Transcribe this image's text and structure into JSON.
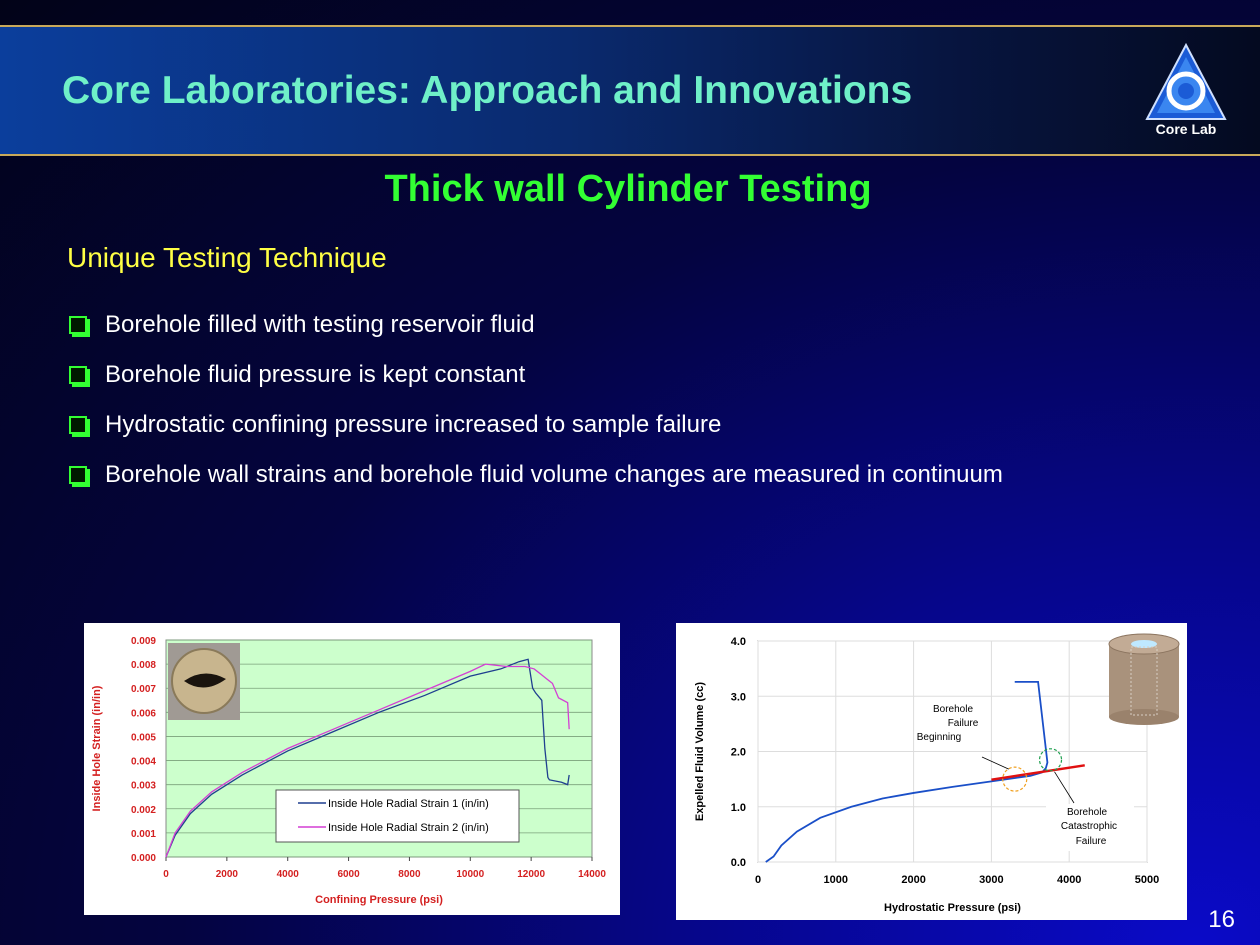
{
  "header": {
    "title": "Core Laboratories: Approach and Innovations",
    "logo_text": "Core Lab"
  },
  "subtitle": "Thick wall Cylinder Testing",
  "section_heading": "Unique Testing Technique",
  "bullets": [
    "Borehole filled with testing reservoir fluid",
    "Borehole fluid pressure is kept constant",
    "Hydrostatic confining pressure increased to sample failure",
    "Borehole  wall strains and borehole fluid volume changes are measured in continuum"
  ],
  "page_number": "16",
  "colors": {
    "title": "#6ff0c8",
    "subtitle": "#33ff33",
    "heading": "#ffff44",
    "chart1_plot_bg": "#ccffcc",
    "series1": "#1f3f8f",
    "series2": "#d43fd4",
    "chart2_line": "#1a4fc8",
    "chart2_fit": "#e01010"
  },
  "chart_data": [
    {
      "type": "line",
      "xlabel": "Confining Pressure (psi)",
      "ylabel": "Inside Hole Strain (in/in)",
      "xlim": [
        0,
        14000
      ],
      "ylim": [
        0,
        0.009
      ],
      "xticks": [
        "0",
        "2000",
        "4000",
        "6000",
        "8000",
        "10000",
        "12000",
        "14000"
      ],
      "yticks": [
        "0.000",
        "0.001",
        "0.002",
        "0.003",
        "0.004",
        "0.005",
        "0.006",
        "0.007",
        "0.008",
        "0.009"
      ],
      "grid": true,
      "legend_position": "bottom-center",
      "series": [
        {
          "name": "Inside Hole Radial Strain 1 (in/in)",
          "x": [
            0,
            300,
            800,
            1500,
            2500,
            4000,
            5500,
            7000,
            8500,
            10000,
            11000,
            11600,
            11900,
            12050,
            12150,
            12350,
            12400,
            12450,
            12550,
            12600,
            13000,
            13200,
            13250
          ],
          "y": [
            0,
            0.0009,
            0.0018,
            0.0026,
            0.0034,
            0.0044,
            0.0052,
            0.006,
            0.0067,
            0.0075,
            0.0078,
            0.0081,
            0.0082,
            0.007,
            0.0068,
            0.0065,
            0.0055,
            0.0045,
            0.0033,
            0.0032,
            0.0031,
            0.003,
            0.0034
          ]
        },
        {
          "name": "Inside Hole Radial Strain 2 (in/in)",
          "x": [
            0,
            300,
            800,
            1500,
            2500,
            4000,
            5500,
            7000,
            8500,
            10000,
            10500,
            11200,
            11800,
            12100,
            12300,
            12500,
            12700,
            12900,
            13200,
            13250
          ],
          "y": [
            0,
            0.001,
            0.0019,
            0.0027,
            0.0035,
            0.0045,
            0.0053,
            0.0061,
            0.0069,
            0.0077,
            0.008,
            0.0079,
            0.0079,
            0.0078,
            0.0076,
            0.0074,
            0.0072,
            0.0066,
            0.0064,
            0.0053
          ]
        }
      ]
    },
    {
      "type": "line",
      "xlabel": "Hydrostatic Pressure (psi)",
      "ylabel": "Expelled Fluid Volume (cc)",
      "xlim": [
        0,
        5000
      ],
      "ylim": [
        0,
        4.0
      ],
      "xticks": [
        "0",
        "1000",
        "2000",
        "3000",
        "4000",
        "5000"
      ],
      "yticks": [
        "0.0",
        "1.0",
        "2.0",
        "3.0",
        "4.0"
      ],
      "grid": true,
      "series": [
        {
          "x": [
            100,
            200,
            300,
            500,
            800,
            1200,
            1600,
            2000,
            2500,
            3000,
            3500,
            3650,
            3700,
            3720,
            3600,
            3480,
            3300
          ],
          "y": [
            0,
            0.1,
            0.3,
            0.55,
            0.8,
            1.0,
            1.15,
            1.25,
            1.36,
            1.46,
            1.56,
            1.62,
            1.7,
            1.8,
            3.26,
            3.26,
            3.26
          ]
        },
        {
          "x": [
            3000,
            4200
          ],
          "y": [
            1.49,
            1.75
          ]
        }
      ],
      "annotations": [
        {
          "text": [
            "Borehole",
            "Failure",
            "Beginning"
          ],
          "x": 3300,
          "y": 1.5
        },
        {
          "text": [
            "Borehole",
            "Catastrophic",
            "Failure"
          ],
          "x": 3800,
          "y": 1.85
        }
      ]
    }
  ]
}
